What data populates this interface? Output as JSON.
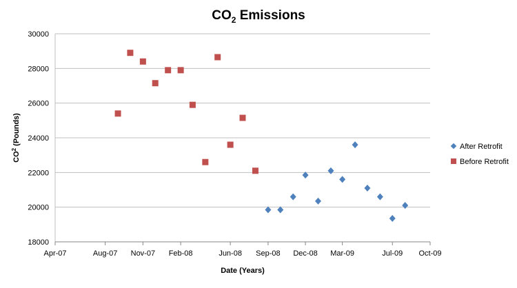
{
  "chart_data": {
    "type": "scatter",
    "title": {
      "main": "CO",
      "subscript": "2",
      "rest": " Emissions"
    },
    "xlabel": "Date (Years)",
    "ylabel": {
      "main": "CO",
      "superscript": "2",
      "rest": " (Pounds)"
    },
    "x_axis": {
      "range": [
        "2007-04-01",
        "2009-10-01"
      ],
      "tick_labels": [
        "Apr-07",
        "Aug-07",
        "Nov-07",
        "Feb-08",
        "Jun-08",
        "Sep-08",
        "Dec-08",
        "Mar-09",
        "Jul-09",
        "Oct-09"
      ],
      "tick_dates": [
        "2007-04-01",
        "2007-08-01",
        "2007-11-01",
        "2008-02-01",
        "2008-06-01",
        "2008-09-01",
        "2008-12-01",
        "2009-03-01",
        "2009-07-01",
        "2009-10-01"
      ]
    },
    "y_axis": {
      "range": [
        18000,
        30000
      ],
      "ticks": [
        18000,
        20000,
        22000,
        24000,
        26000,
        28000,
        30000
      ],
      "tick_labels": [
        "18000",
        "20000",
        "22000",
        "24000",
        "26000",
        "28000",
        "30000"
      ]
    },
    "grid": {
      "horizontal": true,
      "vertical": false
    },
    "legend_position": "right",
    "series": [
      {
        "name": "After Retrofit",
        "marker": "diamond",
        "color": "#4f81bd",
        "points": [
          {
            "x": "2008-09-01",
            "y": 19850
          },
          {
            "x": "2008-10-01",
            "y": 19850
          },
          {
            "x": "2008-11-01",
            "y": 20600
          },
          {
            "x": "2008-12-01",
            "y": 21850
          },
          {
            "x": "2009-01-01",
            "y": 20350
          },
          {
            "x": "2009-02-01",
            "y": 22100
          },
          {
            "x": "2009-03-01",
            "y": 21600
          },
          {
            "x": "2009-04-01",
            "y": 23600
          },
          {
            "x": "2009-05-01",
            "y": 21100
          },
          {
            "x": "2009-06-01",
            "y": 20600
          },
          {
            "x": "2009-07-01",
            "y": 19350
          },
          {
            "x": "2009-08-01",
            "y": 20100
          }
        ]
      },
      {
        "name": "Before Retrofit",
        "marker": "square",
        "color": "#c0504d",
        "points": [
          {
            "x": "2007-09-01",
            "y": 25400
          },
          {
            "x": "2007-10-01",
            "y": 28900
          },
          {
            "x": "2007-11-01",
            "y": 28400
          },
          {
            "x": "2007-12-01",
            "y": 27150
          },
          {
            "x": "2008-01-01",
            "y": 27900
          },
          {
            "x": "2008-02-01",
            "y": 27900
          },
          {
            "x": "2008-03-01",
            "y": 25900
          },
          {
            "x": "2008-04-01",
            "y": 22600
          },
          {
            "x": "2008-05-01",
            "y": 28650
          },
          {
            "x": "2008-06-01",
            "y": 23600
          },
          {
            "x": "2008-07-01",
            "y": 25150
          },
          {
            "x": "2008-08-01",
            "y": 22100
          }
        ]
      }
    ]
  }
}
